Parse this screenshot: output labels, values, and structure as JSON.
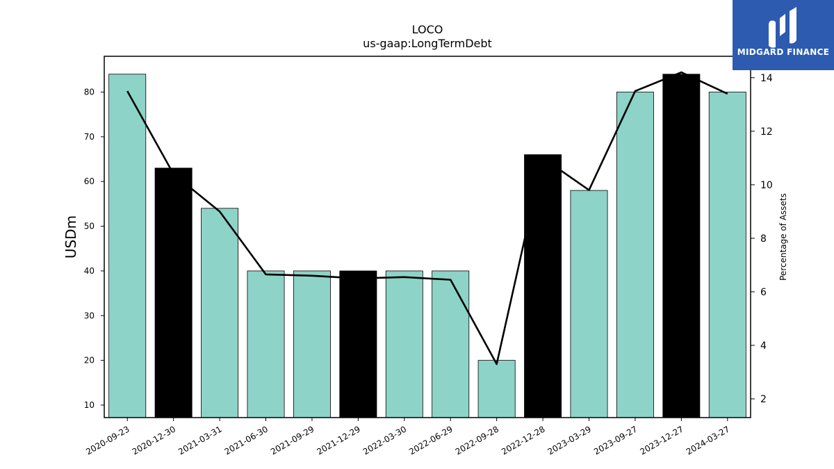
{
  "chart_data": {
    "type": "bar",
    "title": "LOCO",
    "subtitle": "us-gaap:LongTermDebt",
    "ylabel": "USDm",
    "ylabel_right": "Percentage of Assets",
    "categories": [
      "2020-09-23",
      "2020-12-30",
      "2021-03-31",
      "2021-06-30",
      "2021-09-29",
      "2021-12-29",
      "2022-03-30",
      "2022-06-29",
      "2022-09-28",
      "2022-12-28",
      "2023-03-29",
      "2023-09-27",
      "2023-12-27",
      "2024-03-27"
    ],
    "series": [
      {
        "type": "bar",
        "axis": "left",
        "values": [
          84,
          63,
          54,
          40,
          40,
          40,
          40,
          40,
          20,
          66,
          58,
          80,
          84,
          80
        ],
        "highlight": [
          false,
          true,
          false,
          false,
          false,
          true,
          false,
          false,
          false,
          true,
          false,
          false,
          true,
          false
        ]
      },
      {
        "type": "line",
        "axis": "right",
        "values": [
          13.5,
          10.4,
          9.0,
          6.65,
          6.6,
          6.5,
          6.55,
          6.45,
          3.3,
          11.0,
          9.8,
          13.5,
          14.2,
          13.4
        ]
      }
    ],
    "ylim": [
      7.2,
      88
    ],
    "ylim_right": [
      1.3,
      14.8
    ],
    "yticks": [
      10,
      20,
      30,
      40,
      50,
      60,
      70,
      80
    ],
    "yticks_right": [
      2,
      4,
      6,
      8,
      10,
      12,
      14
    ],
    "colors": {
      "bar": "#8dd3c7",
      "bar_highlight": "#000000",
      "line": "#000000"
    },
    "grid": false
  },
  "logo": {
    "text": "MIDGARD FINANCE",
    "color": "#2d5bb0"
  }
}
